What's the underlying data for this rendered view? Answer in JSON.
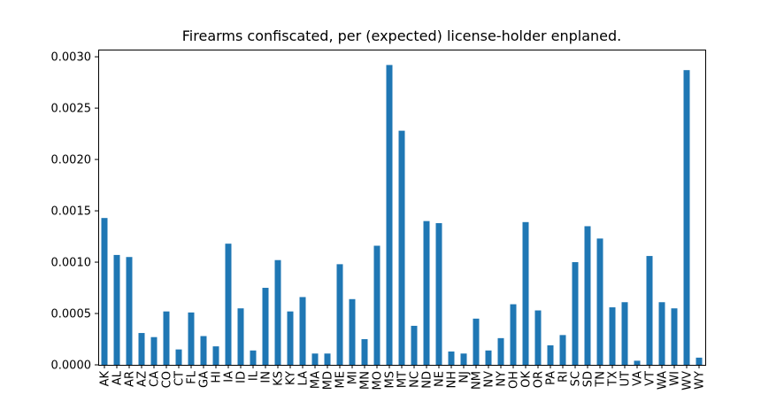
{
  "chart_data": {
    "type": "bar",
    "title": "Firearms confiscated, per (expected) license-holder enplaned.",
    "xlabel": "",
    "ylabel": "",
    "ylim": [
      0,
      0.00307
    ],
    "yticks": [
      "0.0000",
      "0.0005",
      "0.0010",
      "0.0015",
      "0.0020",
      "0.0025",
      "0.0030"
    ],
    "ytick_values": [
      0,
      0.0005,
      0.001,
      0.0015,
      0.002,
      0.0025,
      0.003
    ],
    "grid": false,
    "legend": "none",
    "bar_color": "#1f77b4",
    "categories": [
      "AK",
      "AL",
      "AR",
      "AZ",
      "CA",
      "CO",
      "CT",
      "FL",
      "GA",
      "HI",
      "IA",
      "ID",
      "IL",
      "IN",
      "KS",
      "KY",
      "LA",
      "MA",
      "MD",
      "ME",
      "MI",
      "MN",
      "MO",
      "MS",
      "MT",
      "NC",
      "ND",
      "NE",
      "NH",
      "NJ",
      "NM",
      "NV",
      "NY",
      "OH",
      "OK",
      "OR",
      "PA",
      "RI",
      "SC",
      "SD",
      "TN",
      "TX",
      "UT",
      "VA",
      "VT",
      "WA",
      "WI",
      "WV",
      "WY"
    ],
    "values": [
      0.00143,
      0.00107,
      0.00105,
      0.00031,
      0.00027,
      0.00052,
      0.00015,
      0.00051,
      0.00028,
      0.00018,
      0.00118,
      0.00055,
      0.00014,
      0.00075,
      0.00102,
      0.00052,
      0.00066,
      0.00011,
      0.00011,
      0.00098,
      0.00064,
      0.00025,
      0.00116,
      0.00292,
      0.00228,
      0.00038,
      0.0014,
      0.00138,
      0.00013,
      0.00011,
      0.00045,
      0.00014,
      0.00026,
      0.00059,
      0.00139,
      0.00053,
      0.00019,
      0.00029,
      0.001,
      0.00135,
      0.00123,
      0.00056,
      0.00061,
      4e-05,
      0.00106,
      0.00061,
      0.00055,
      0.00287,
      7e-05
    ]
  }
}
